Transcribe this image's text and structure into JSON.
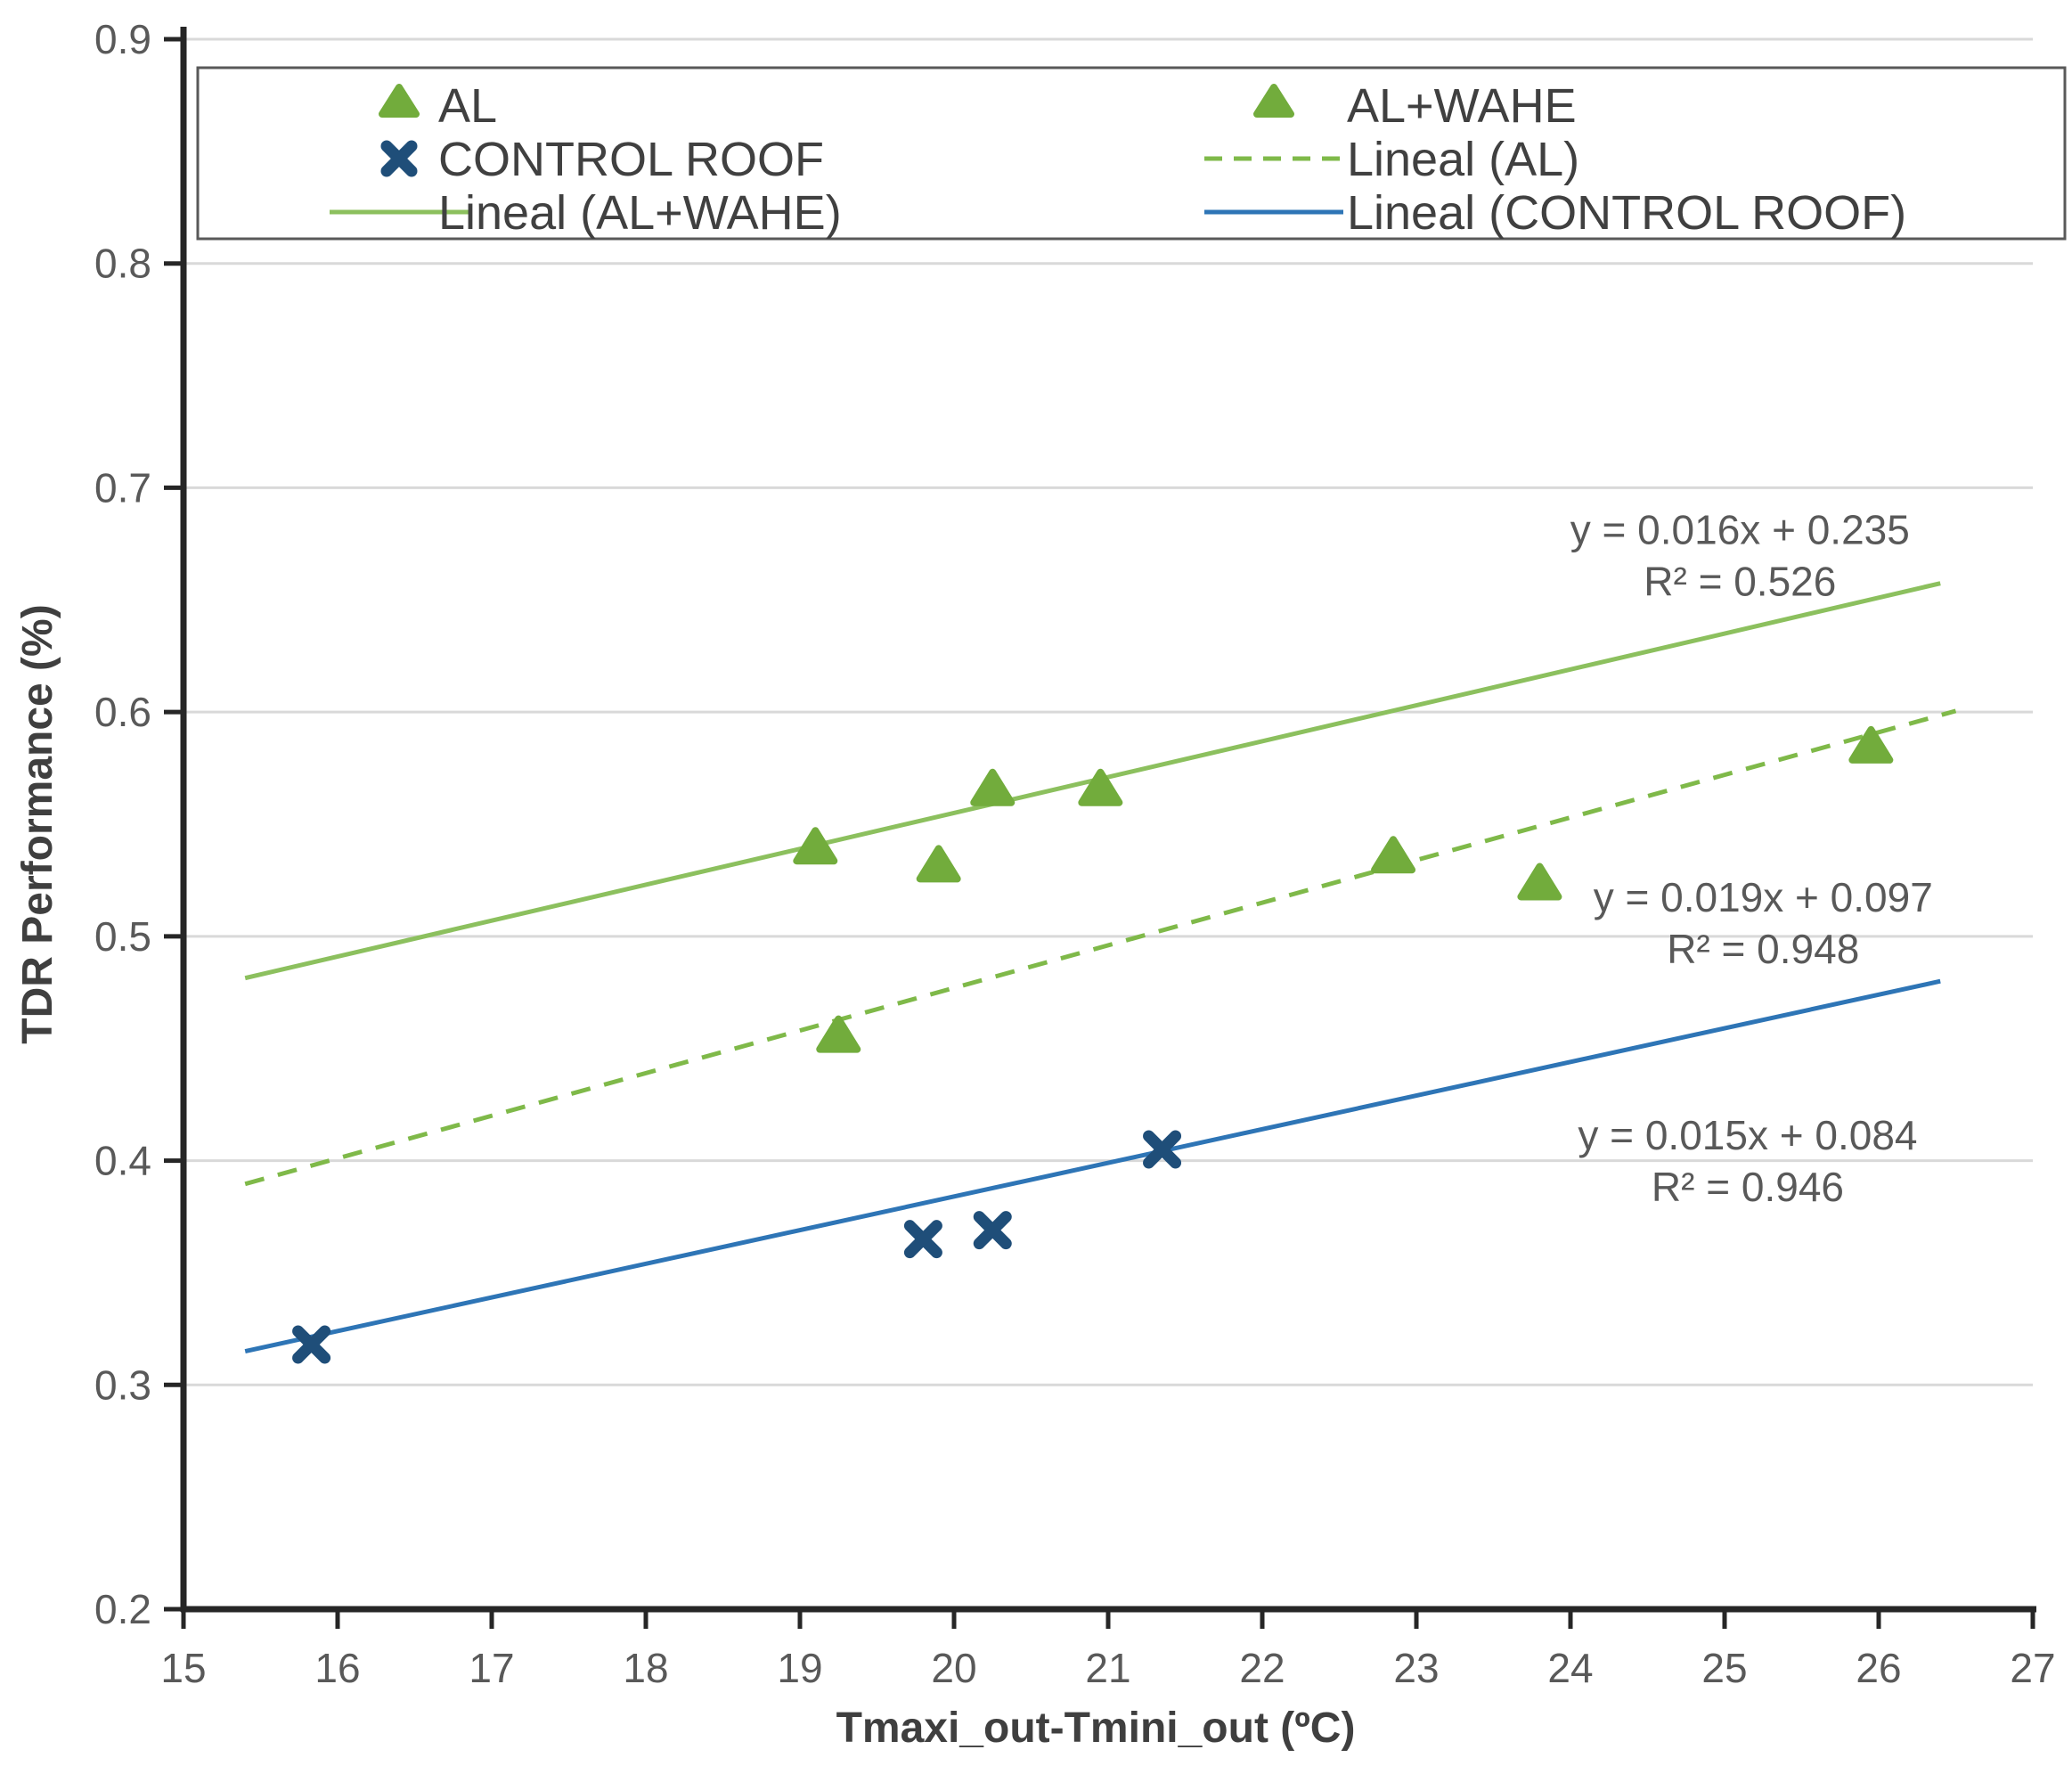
{
  "chart_data": {
    "type": "scatter",
    "title": "",
    "xlabel": "Tmaxi_out-Tmini_out (ºC)",
    "ylabel": "TDR Performance (%)",
    "xlim": [
      15,
      27
    ],
    "ylim": [
      0.2,
      0.9
    ],
    "xticks": [
      15,
      16,
      17,
      18,
      19,
      20,
      21,
      22,
      23,
      24,
      25,
      26,
      27
    ],
    "yticks": [
      "0.2",
      "0.3",
      "0.4",
      "0.5",
      "0.6",
      "0.7",
      "0.8",
      "0.9"
    ],
    "grid": "horizontal-only",
    "legend_position": "top",
    "series": [
      {
        "name": "AL",
        "marker": "triangle",
        "color": "#72AC3C",
        "points": [
          [
            19.25,
            0.454
          ],
          [
            22.85,
            0.534
          ],
          [
            23.8,
            0.522
          ],
          [
            25.95,
            0.583
          ]
        ]
      },
      {
        "name": "AL+WAHE",
        "marker": "triangle",
        "color": "#72AC3C",
        "points": [
          [
            19.1,
            0.538
          ],
          [
            19.9,
            0.53
          ],
          [
            20.25,
            0.564
          ],
          [
            20.95,
            0.564
          ]
        ]
      },
      {
        "name": "CONTROL ROOF",
        "marker": "x",
        "color": "#1F4E79",
        "points": [
          [
            15.83,
            0.318
          ],
          [
            19.8,
            0.365
          ],
          [
            20.25,
            0.369
          ],
          [
            21.35,
            0.405
          ]
        ]
      }
    ],
    "trendlines": [
      {
        "name": "Lineal (AL+WAHE)",
        "style": "solid",
        "color": "#8CC05E",
        "slope": 0.016,
        "intercept": 0.235,
        "x_range": [
          15.4,
          26.4
        ],
        "equation": "y = 0.016x + 0.235",
        "r2": "R² = 0.526",
        "label_pos": [
          25.1,
          0.675
        ]
      },
      {
        "name": "Lineal (AL)",
        "style": "dashed",
        "color": "#7FB949",
        "slope": 0.019,
        "intercept": 0.097,
        "x_range": [
          15.4,
          26.5
        ],
        "equation": "y = 0.019x + 0.097",
        "r2": "R² = 0.948",
        "label_pos": [
          25.25,
          0.511
        ]
      },
      {
        "name": "Lineal (CONTROL ROOF)",
        "style": "solid",
        "color": "#2E75B6",
        "slope": 0.015,
        "intercept": 0.084,
        "x_range": [
          15.4,
          26.4
        ],
        "equation": "y = 0.015x + 0.084",
        "r2": "R² = 0.946",
        "label_pos": [
          25.15,
          0.405
        ]
      }
    ],
    "legend": {
      "items": [
        {
          "label": "AL",
          "marker": "triangle",
          "color": "#72AC3C",
          "col": 0,
          "row": 0
        },
        {
          "label": "CONTROL ROOF",
          "marker": "x",
          "color": "#1F4E79",
          "col": 0,
          "row": 1
        },
        {
          "label": "Lineal (AL+WAHE)",
          "marker": "line-solid",
          "color": "#8CC05E",
          "col": 0,
          "row": 2
        },
        {
          "label": "AL+WAHE",
          "marker": "triangle",
          "color": "#72AC3C",
          "col": 1,
          "row": 0
        },
        {
          "label": "Lineal (AL)",
          "marker": "line-dashed",
          "color": "#7FB949",
          "col": 1,
          "row": 1
        },
        {
          "label": "Lineal (CONTROL ROOF)",
          "marker": "line-solid",
          "color": "#2E75B6",
          "col": 1,
          "row": 2
        }
      ]
    },
    "colors": {
      "grid": "#D9D9D9",
      "axis": "#262626",
      "tick_text": "#595959",
      "axis_title_text": "#3F3F3F",
      "equation_text": "#595959",
      "legend_border": "#595959",
      "background": "#FFFFFF"
    }
  }
}
